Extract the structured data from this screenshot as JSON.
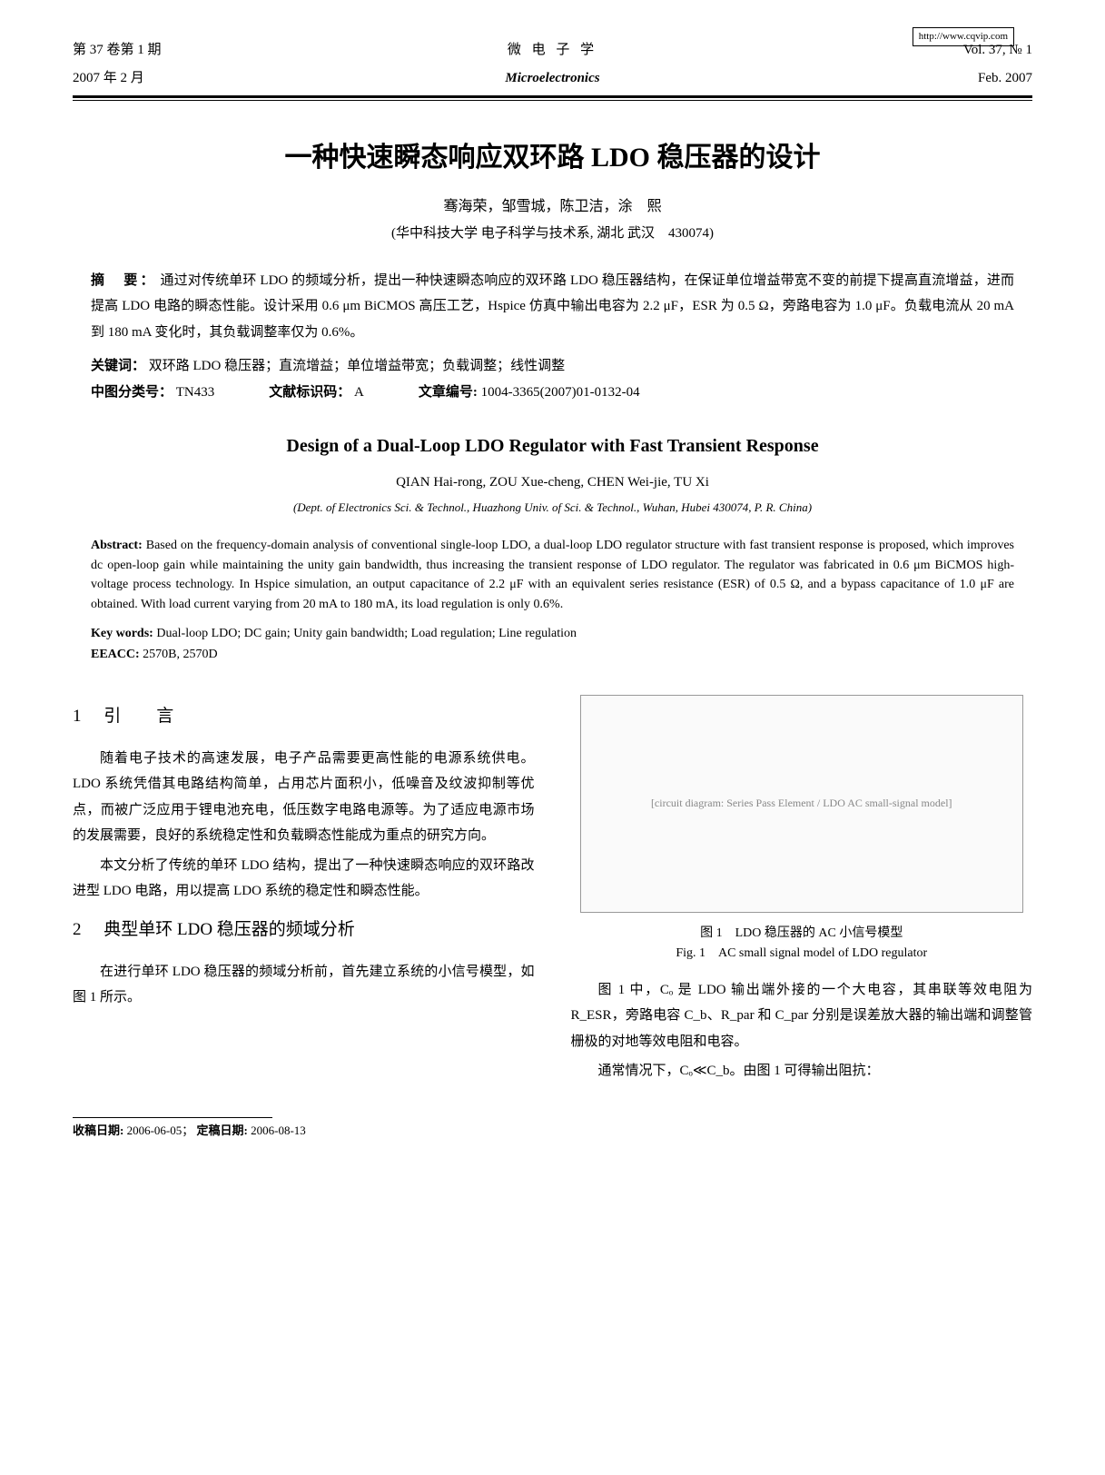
{
  "url_badge": "http://www.cqvip.com",
  "header": {
    "row1": {
      "left": "第 37 卷第 1 期",
      "center": "微 电 子 学",
      "right": "Vol. 37, № 1"
    },
    "row2": {
      "left": "2007 年 2 月",
      "center": "Microelectronics",
      "right": "Feb. 2007"
    }
  },
  "title_cn": "一种快速瞬态响应双环路 LDO 稳压器的设计",
  "authors_cn": "骞海荣，邹雪城，陈卫洁，涂　熙",
  "affil_cn": "(华中科技大学 电子科学与技术系, 湖北 武汉　430074)",
  "abstract_cn_label": "摘　要：",
  "abstract_cn": "通过对传统单环 LDO 的频域分析，提出一种快速瞬态响应的双环路 LDO 稳压器结构，在保证单位增益带宽不变的前提下提高直流增益，进而提高 LDO 电路的瞬态性能。设计采用 0.6 μm BiCMOS 高压工艺，Hspice 仿真中输出电容为 2.2 μF，ESR 为 0.5 Ω，旁路电容为 1.0 μF。负载电流从 20 mA 到 180 mA 变化时，其负载调整率仅为 0.6%。",
  "keywords_cn_label": "关键词：",
  "keywords_cn": "双环路 LDO 稳压器；直流增益；单位增益带宽；负载调整；线性调整",
  "classify_label": "中图分类号：",
  "classify_val": "TN433",
  "doccode_label": "文献标识码：",
  "doccode_val": "A",
  "articleno_label": "文章编号:",
  "articleno_val": "1004-3365(2007)01-0132-04",
  "title_en": "Design of a Dual-Loop LDO Regulator with Fast Transient Response",
  "authors_en": "QIAN Hai-rong, ZOU Xue-cheng, CHEN Wei-jie, TU Xi",
  "affil_en": "(Dept. of Electronics Sci. & Technol., Huazhong Univ. of Sci. & Technol., Wuhan, Hubei 430074, P. R. China)",
  "abstract_en_label": "Abstract:",
  "abstract_en": "Based on the frequency-domain analysis of conventional single-loop LDO, a dual-loop LDO regulator structure with fast transient response is proposed, which improves dc open-loop gain while maintaining the unity gain bandwidth, thus increasing the transient response of LDO regulator. The regulator was fabricated in 0.6 μm BiCMOS high-voltage process technology. In Hspice simulation, an output capacitance of 2.2 μF with an equivalent series resistance (ESR) of 0.5 Ω, and a bypass capacitance of 1.0 μF are obtained. With load current varying from 20 mA to 180 mA, its load regulation is only 0.6%.",
  "keywords_en_label": "Key words:",
  "keywords_en": "Dual-loop LDO; DC gain; Unity gain bandwidth; Load regulation; Line regulation",
  "eeacc_label": "EEACC:",
  "eeacc_val": "2570B, 2570D",
  "sec1": {
    "num": "1",
    "title": "引　言"
  },
  "para1": "随着电子技术的高速发展，电子产品需要更高性能的电源系统供电。LDO 系统凭借其电路结构简单，占用芯片面积小，低噪音及纹波抑制等优点，而被广泛应用于锂电池充电，低压数字电路电源等。为了适应电源市场的发展需要，良好的系统稳定性和负载瞬态性能成为重点的研究方向。",
  "para2": "本文分析了传统的单环 LDO 结构，提出了一种快速瞬态响应的双环路改进型 LDO 电路，用以提高 LDO 系统的稳定性和瞬态性能。",
  "sec2": {
    "num": "2",
    "title_full": "典型单环 LDO 稳压器的频域分析"
  },
  "para3": "在进行单环 LDO 稳压器的频域分析前，首先建立系统的小信号模型，如图 1 所示。",
  "figure1": {
    "placeholder": "[circuit diagram: Series Pass Element / LDO AC small-signal model]",
    "caption_cn": "图 1　LDO 稳压器的 AC 小信号模型",
    "caption_en": "Fig. 1　AC small signal model of LDO regulator"
  },
  "para4": "图 1 中，Cₒ 是 LDO 输出端外接的一个大电容，其串联等效电阻为 R_ESR，旁路电容 C_b、R_par 和 C_par 分别是误差放大器的输出端和调整管栅极的对地等效电阻和电容。",
  "para5": "通常情况下，Cₒ≪C_b。由图 1 可得输出阻抗：",
  "footer": {
    "recv_label": "收稿日期:",
    "recv_val": "2006-06-05；",
    "fix_label": "定稿日期:",
    "fix_val": "2006-08-13"
  }
}
